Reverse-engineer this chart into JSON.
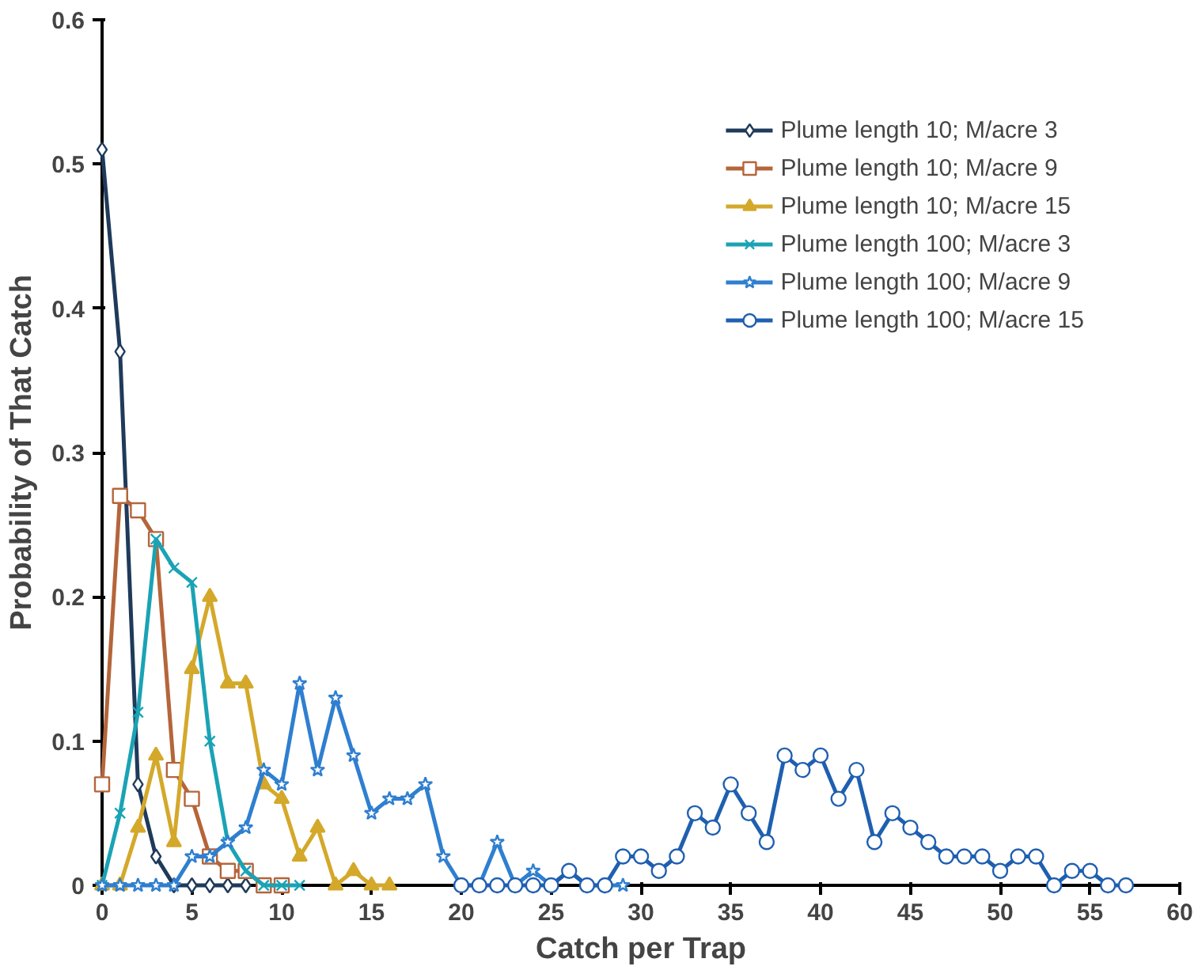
{
  "chart_data": {
    "type": "line",
    "xlabel": "Catch per Trap",
    "ylabel": "Probability of That Catch",
    "xlim": [
      0,
      60
    ],
    "xticks": [
      0,
      5,
      10,
      15,
      20,
      25,
      30,
      35,
      40,
      45,
      50,
      55,
      60
    ],
    "ylim": [
      0,
      0.6
    ],
    "yticks": [
      0,
      0.1,
      0.2,
      0.3,
      0.4,
      0.5,
      0.6
    ],
    "grid": false,
    "legend": "top right",
    "series": [
      {
        "name": "Plume length 10; M/acre 3",
        "color": "#1f3a5a",
        "marker": "diamond",
        "x": [
          0,
          1,
          2,
          3,
          4,
          5,
          6,
          7,
          8
        ],
        "values": [
          0.51,
          0.37,
          0.07,
          0.02,
          0,
          0,
          0,
          0,
          0
        ]
      },
      {
        "name": "Plume length 10; M/acre 9",
        "color": "#b5653a",
        "marker": "square",
        "x": [
          0,
          1,
          2,
          3,
          4,
          5,
          6,
          7,
          8,
          9,
          10
        ],
        "values": [
          0.07,
          0.27,
          0.26,
          0.24,
          0.08,
          0.06,
          0.02,
          0.01,
          0.01,
          0,
          0
        ]
      },
      {
        "name": "Plume length 10; M/acre 15",
        "color": "#d4a82a",
        "marker": "triangle",
        "x": [
          0,
          1,
          2,
          3,
          4,
          5,
          6,
          7,
          8,
          9,
          10,
          11,
          12,
          13,
          14,
          15,
          16
        ],
        "values": [
          0,
          0,
          0.04,
          0.09,
          0.03,
          0.15,
          0.2,
          0.14,
          0.14,
          0.07,
          0.06,
          0.02,
          0.04,
          0,
          0.01,
          0,
          0
        ]
      },
      {
        "name": "Plume length 100; M/acre 3",
        "color": "#1aa3b5",
        "marker": "cross",
        "x": [
          0,
          1,
          2,
          3,
          4,
          5,
          6,
          7,
          8,
          9,
          10,
          11
        ],
        "values": [
          0,
          0.05,
          0.12,
          0.24,
          0.22,
          0.21,
          0.1,
          0.03,
          0.01,
          0,
          0,
          0
        ]
      },
      {
        "name": "Plume length 100; M/acre 9",
        "color": "#2f7fd0",
        "marker": "star",
        "x": [
          0,
          1,
          2,
          3,
          4,
          5,
          6,
          7,
          8,
          9,
          10,
          11,
          12,
          13,
          14,
          15,
          16,
          17,
          18,
          19,
          20,
          21,
          22,
          23,
          24,
          25,
          26,
          27,
          28,
          29
        ],
        "values": [
          0,
          0,
          0,
          0,
          0,
          0.02,
          0.02,
          0.03,
          0.04,
          0.08,
          0.07,
          0.14,
          0.08,
          0.13,
          0.09,
          0.05,
          0.06,
          0.06,
          0.07,
          0.02,
          0,
          0,
          0.03,
          0,
          0.01,
          0,
          0.01,
          0,
          0,
          0
        ]
      },
      {
        "name": "Plume length 100; M/acre 15",
        "color": "#1f5fb0",
        "marker": "circle",
        "x": [
          20,
          21,
          22,
          23,
          24,
          25,
          26,
          27,
          28,
          29,
          30,
          31,
          32,
          33,
          34,
          35,
          36,
          37,
          38,
          39,
          40,
          41,
          42,
          43,
          44,
          45,
          46,
          47,
          48,
          49,
          50,
          51,
          52,
          53,
          54,
          55,
          56,
          57
        ],
        "values": [
          0,
          0,
          0,
          0,
          0,
          0,
          0.01,
          0,
          0,
          0.02,
          0.02,
          0.01,
          0.02,
          0.05,
          0.04,
          0.07,
          0.05,
          0.03,
          0.09,
          0.08,
          0.09,
          0.06,
          0.08,
          0.03,
          0.05,
          0.04,
          0.03,
          0.02,
          0.02,
          0.02,
          0.01,
          0.02,
          0.02,
          0,
          0.01,
          0.01,
          0,
          0
        ]
      }
    ]
  }
}
